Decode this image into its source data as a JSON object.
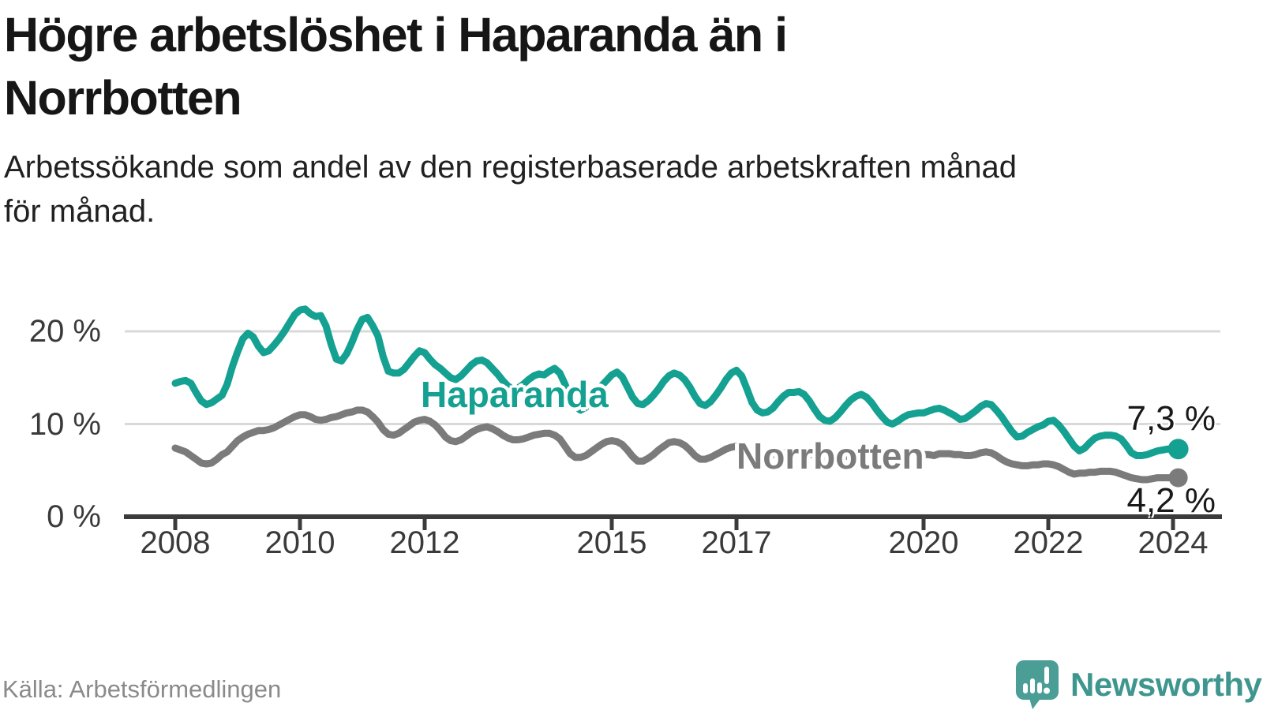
{
  "header": {
    "title_lines": [
      "Högre arbetslöshet i Haparanda än i",
      "Norrbotten"
    ],
    "subtitle_lines": [
      "Arbetssökande som andel av den registerbaserade arbetskraften månad",
      "för månad."
    ]
  },
  "footer": {
    "source": "Källa: Arbetsförmedlingen",
    "brand": "Newsworthy"
  },
  "chart_data": {
    "type": "line",
    "title": "Högre arbetslöshet i Haparanda än i Norrbotten",
    "subtitle": "Arbetssökande som andel av den registerbaserade arbetskraften månad för månad.",
    "unit": "%",
    "x_start_year": 2008,
    "frequency": "monthly",
    "ylim": [
      0,
      24
    ],
    "grid": true,
    "grid_values": [
      10,
      20
    ],
    "ytick_labels": [
      "20 %",
      "10 %",
      "0 %"
    ],
    "xticks": [
      2008,
      2010,
      2012,
      2015,
      2017,
      2020,
      2022,
      2024
    ],
    "xtick_labels": [
      "2008",
      "2010",
      "2012",
      "2015",
      "2017",
      "2020",
      "2022",
      "2024"
    ],
    "colors": {
      "gridline": "#d9d9d9",
      "axis": "#3b3b3b",
      "haparanda": "#15a191",
      "norrbotten": "#7b7b7b",
      "logo": "#4a9e96",
      "logo_text": "#3f968e"
    },
    "series": [
      {
        "name": "Haparanda",
        "color": "#15a191",
        "dot_radius": 13,
        "end_value_label": "7,3 %",
        "values": [
          14.4,
          14.6,
          14.7,
          14.4,
          13.4,
          12.5,
          12.1,
          12.3,
          12.7,
          13.1,
          14.3,
          16.2,
          17.8,
          19.2,
          19.8,
          19.4,
          18.4,
          17.7,
          17.9,
          18.5,
          19.2,
          20.0,
          20.9,
          21.8,
          22.3,
          22.4,
          21.9,
          21.6,
          21.7,
          20.6,
          18.6,
          17.0,
          16.8,
          17.6,
          18.8,
          20.2,
          21.3,
          21.5,
          20.6,
          19.5,
          17.3,
          15.7,
          15.5,
          15.5,
          15.9,
          16.6,
          17.3,
          17.9,
          17.7,
          17.0,
          16.4,
          16.0,
          15.5,
          15.0,
          14.8,
          15.2,
          15.8,
          16.4,
          16.8,
          16.9,
          16.6,
          16.0,
          15.4,
          14.7,
          14.1,
          13.8,
          13.9,
          14.3,
          14.8,
          15.2,
          15.4,
          15.3,
          15.7,
          16.0,
          15.5,
          14.3,
          12.8,
          11.9,
          11.5,
          11.8,
          12.6,
          13.4,
          14.1,
          14.7,
          15.3,
          15.6,
          15.1,
          14.0,
          12.9,
          12.2,
          12.1,
          12.5,
          13.1,
          13.8,
          14.6,
          15.2,
          15.5,
          15.3,
          14.8,
          14.0,
          13.0,
          12.2,
          12.0,
          12.4,
          13.1,
          13.9,
          14.8,
          15.5,
          15.8,
          15.2,
          13.8,
          12.3,
          11.5,
          11.2,
          11.3,
          11.7,
          12.4,
          13.0,
          13.4,
          13.4,
          13.5,
          13.2,
          12.5,
          11.6,
          10.8,
          10.4,
          10.3,
          10.7,
          11.3,
          12.0,
          12.6,
          13.0,
          13.2,
          12.9,
          12.3,
          11.5,
          10.8,
          10.2,
          10.0,
          10.3,
          10.7,
          11.0,
          11.1,
          11.2,
          11.2,
          11.4,
          11.6,
          11.7,
          11.5,
          11.2,
          10.9,
          10.5,
          10.6,
          11.0,
          11.4,
          11.9,
          12.2,
          12.1,
          11.5,
          10.8,
          10.0,
          9.2,
          8.6,
          8.7,
          9.1,
          9.4,
          9.7,
          9.9,
          10.3,
          10.4,
          9.9,
          9.2,
          8.4,
          7.6,
          7.1,
          7.4,
          8.0,
          8.5,
          8.7,
          8.8,
          8.8,
          8.7,
          8.4,
          7.7,
          6.9,
          6.6,
          6.6,
          6.7,
          6.9,
          7.1,
          7.2,
          7.3,
          7.3,
          7.3
        ]
      },
      {
        "name": "Norrbotten",
        "color": "#7b7b7b",
        "dot_radius": 12,
        "end_value_label": "4,2 %",
        "values": [
          7.4,
          7.2,
          7.0,
          6.6,
          6.2,
          5.8,
          5.7,
          5.8,
          6.2,
          6.7,
          7.0,
          7.6,
          8.2,
          8.6,
          8.9,
          9.1,
          9.3,
          9.3,
          9.4,
          9.6,
          9.9,
          10.2,
          10.5,
          10.8,
          11.0,
          11.0,
          10.8,
          10.5,
          10.4,
          10.5,
          10.7,
          10.8,
          11.0,
          11.2,
          11.3,
          11.5,
          11.5,
          11.3,
          10.8,
          10.2,
          9.4,
          8.9,
          8.8,
          9.0,
          9.4,
          9.8,
          10.2,
          10.4,
          10.5,
          10.3,
          9.9,
          9.3,
          8.6,
          8.2,
          8.1,
          8.3,
          8.7,
          9.1,
          9.4,
          9.6,
          9.7,
          9.5,
          9.2,
          8.8,
          8.5,
          8.3,
          8.3,
          8.4,
          8.6,
          8.8,
          8.9,
          9.0,
          9.0,
          8.8,
          8.4,
          7.6,
          6.8,
          6.4,
          6.4,
          6.6,
          7.0,
          7.4,
          7.8,
          8.1,
          8.2,
          8.1,
          7.8,
          7.2,
          6.5,
          6.0,
          6.0,
          6.3,
          6.7,
          7.2,
          7.6,
          8.0,
          8.1,
          8.0,
          7.7,
          7.2,
          6.6,
          6.2,
          6.2,
          6.4,
          6.7,
          7.0,
          7.3,
          7.5,
          7.6,
          7.4,
          7.2,
          7.0,
          6.8,
          6.6,
          6.6,
          6.7,
          6.8,
          6.9,
          7.0,
          7.1,
          7.1,
          7.0,
          6.8,
          6.6,
          6.4,
          6.2,
          6.2,
          6.3,
          6.4,
          6.5,
          6.6,
          6.7,
          6.7,
          6.6,
          6.5,
          6.3,
          6.2,
          6.1,
          6.1,
          6.2,
          6.3,
          6.4,
          6.5,
          6.6,
          6.7,
          6.7,
          6.6,
          6.8,
          6.8,
          6.8,
          6.7,
          6.7,
          6.6,
          6.6,
          6.7,
          6.9,
          7.0,
          6.9,
          6.6,
          6.2,
          5.9,
          5.7,
          5.6,
          5.5,
          5.5,
          5.6,
          5.6,
          5.7,
          5.7,
          5.6,
          5.4,
          5.1,
          4.8,
          4.6,
          4.7,
          4.7,
          4.8,
          4.8,
          4.9,
          4.9,
          4.9,
          4.8,
          4.6,
          4.4,
          4.2,
          4.1,
          4.0,
          4.0,
          4.1,
          4.2,
          4.2,
          4.2,
          4.2,
          4.2
        ]
      }
    ],
    "legend_position": "inline-labels"
  }
}
